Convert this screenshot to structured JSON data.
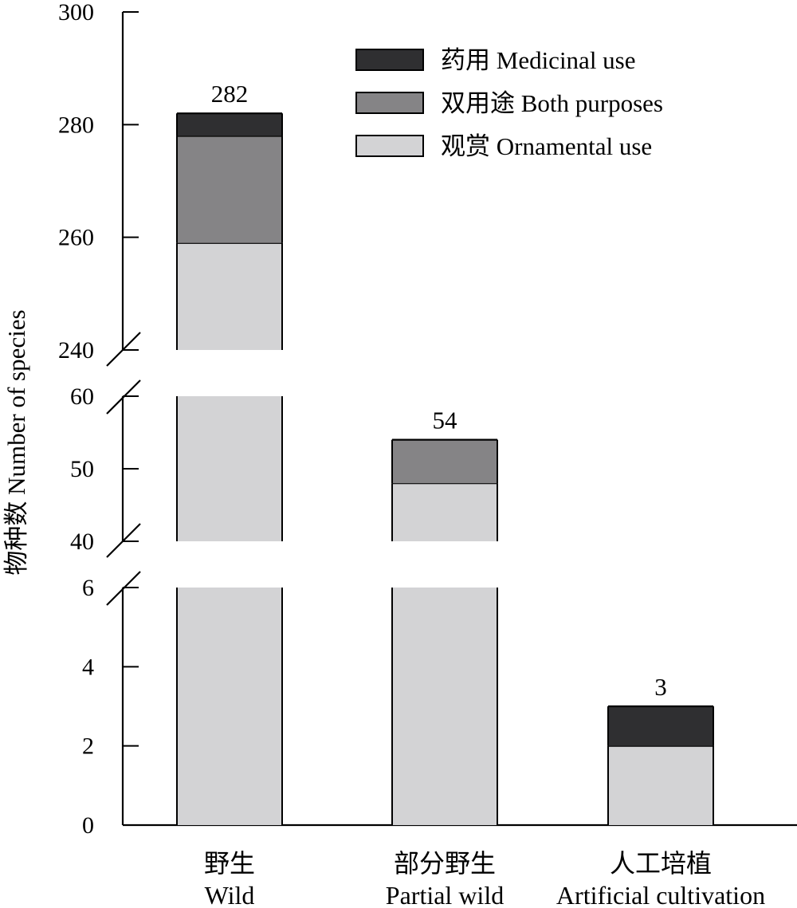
{
  "chart_data": {
    "type": "bar",
    "stacked": true,
    "broken_y_axis": true,
    "ylabel": "物种数 Number of species",
    "xlabel": "",
    "categories": [
      {
        "cn": "野生",
        "en": "Wild"
      },
      {
        "cn": "部分野生",
        "en": "Partial wild"
      },
      {
        "cn": "人工培植",
        "en": "Artificial cultivation"
      }
    ],
    "series": [
      {
        "name": "观赏 Ornamental use",
        "color": "#d3d3d5",
        "values": [
          259,
          48,
          2
        ]
      },
      {
        "name": "双用途 Both purposes",
        "color": "#858486",
        "values": [
          19,
          6,
          0
        ]
      },
      {
        "name": "药用 Medicinal use",
        "color": "#2f2f31",
        "values": [
          4,
          0,
          1
        ]
      }
    ],
    "totals": [
      "282",
      "54",
      "3"
    ],
    "y_segments": [
      {
        "range": [
          0,
          6
        ],
        "ticks": [
          "0",
          "2",
          "4",
          "6"
        ]
      },
      {
        "range": [
          40,
          60
        ],
        "ticks": [
          "40",
          "50",
          "60"
        ]
      },
      {
        "range": [
          240,
          300
        ],
        "ticks": [
          "240",
          "260",
          "280",
          "300"
        ]
      }
    ],
    "legend_position": "top-right",
    "legend_order": [
      2,
      1,
      0
    ],
    "grid": false
  }
}
